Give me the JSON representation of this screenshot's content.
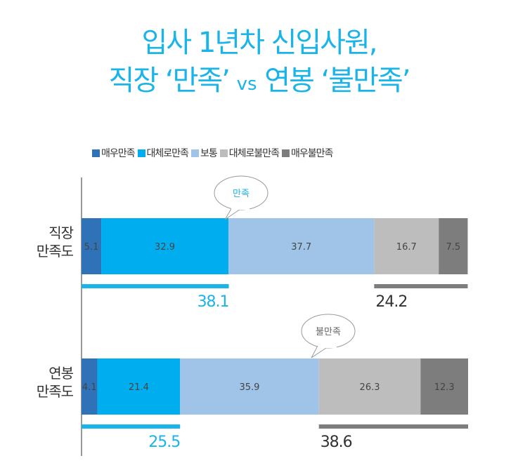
{
  "title_line1": "입사 1년차 신입사원,",
  "title_line2_a": "직장 ‘만족’",
  "title_line2_vs": "vs",
  "title_line2_b": "연봉 ‘불만족’",
  "colors": {
    "title": "#1ab4e8",
    "매우만족": "#2f72b8",
    "대체로만족": "#00aeef",
    "보통": "#9fc4e8",
    "대체로불만족": "#bdbdbd",
    "매우불만족": "#7d7d7d",
    "satisfied_line": "#1ab4e8",
    "dissatisfied_line": "#7d7d7d"
  },
  "chart_data": {
    "type": "bar",
    "orientation": "horizontal-stacked",
    "legend_position": "top",
    "categories": [
      "직장\n만족도",
      "연봉\n만족도"
    ],
    "category_lines": [
      [
        "직장",
        "만족도"
      ],
      [
        "연봉",
        "만족도"
      ]
    ],
    "series": [
      {
        "name": "매우만족",
        "values": [
          5.1,
          4.1
        ]
      },
      {
        "name": "대체로만족",
        "values": [
          32.9,
          21.4
        ]
      },
      {
        "name": "보통",
        "values": [
          37.7,
          35.9
        ]
      },
      {
        "name": "대체로불만족",
        "values": [
          16.7,
          26.3
        ]
      },
      {
        "name": "매우불만족",
        "values": [
          7.5,
          12.3
        ]
      }
    ],
    "satisfied_totals": [
      38.1,
      25.5
    ],
    "dissatisfied_totals": [
      24.2,
      38.6
    ],
    "satisfied_totals_text": [
      "38.1",
      "25.5"
    ],
    "dissatisfied_totals_text": [
      "24.2",
      "38.6"
    ],
    "callouts": [
      "만족",
      "불만족"
    ]
  }
}
